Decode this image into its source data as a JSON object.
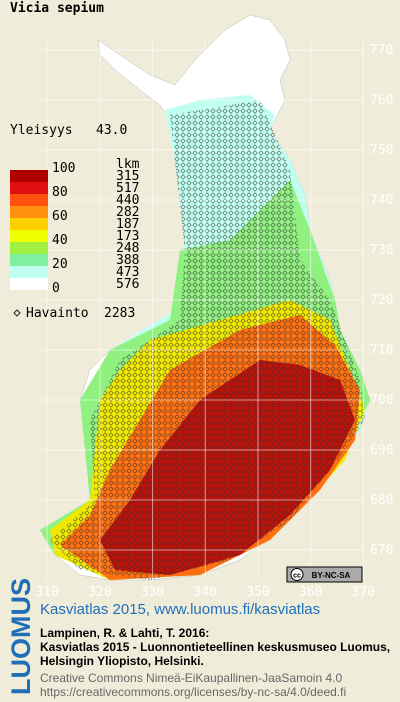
{
  "title": "Vicia sepium",
  "frequency": {
    "label": "Yleisyys",
    "value": "43.0"
  },
  "legend": {
    "count_header": "lkm",
    "scale_labels": [
      100,
      80,
      60,
      40,
      20,
      0
    ],
    "classes": [
      {
        "color": "#b00000",
        "count": 315
      },
      {
        "color": "#e01010",
        "count": 517
      },
      {
        "color": "#ff5010",
        "count": 440
      },
      {
        "color": "#ff9010",
        "count": 282
      },
      {
        "color": "#ffd000",
        "count": 187
      },
      {
        "color": "#f0ff00",
        "count": 173
      },
      {
        "color": "#a0f040",
        "count": 248
      },
      {
        "color": "#80f0a0",
        "count": 388
      },
      {
        "color": "#c0fff0",
        "count": 473
      },
      {
        "color": "#ffffff",
        "count": 576
      }
    ]
  },
  "observations": {
    "label": "Havainto",
    "count": 2283
  },
  "grid": {
    "xlim": [
      302,
      376
    ],
    "ylim": [
      665,
      779
    ],
    "xticks": [
      310,
      320,
      330,
      340,
      350,
      360,
      370
    ],
    "yticks": [
      770,
      760,
      750,
      740,
      730,
      720,
      710,
      700,
      690,
      680,
      670
    ]
  },
  "license_badge": {
    "icon": "cc",
    "text": "BY-NC-SA"
  },
  "footer": {
    "logo": "LUOMUS",
    "headline": "Kasviatlas 2015, www.luomus.fi/kasviatlas",
    "citation": [
      "Lampinen, R. & Lahti, T. 2016:",
      "Kasviatlas 2015 - Luonnontieteellinen keskusmuseo Luomus,",
      "Helsingin Yliopisto, Helsinki."
    ],
    "license": [
      "Creative Commons Nimeä-EiKaupallinen-JaaSamoin 4.0",
      "https://creativecommons.org/licenses/by-nc-sa/4.0/deed.fi"
    ]
  }
}
